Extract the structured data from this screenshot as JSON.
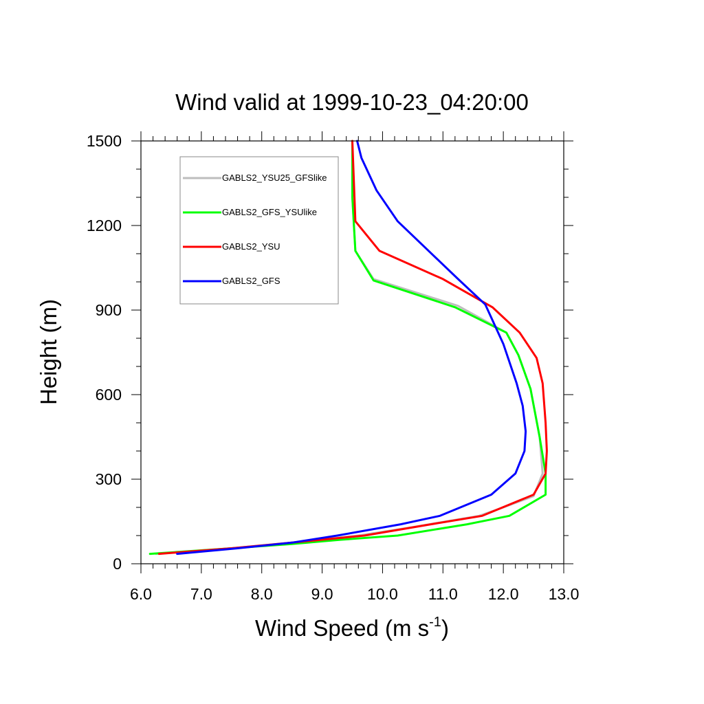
{
  "chart_data": {
    "type": "line",
    "title": "Wind valid at 1999-10-23_04:20:00",
    "xlabel_text": "Wind Speed (m s",
    "xlabel_superscript": "-1",
    "xlabel_close": ")",
    "ylabel": "Height (m)",
    "xlim": [
      6.0,
      13.0
    ],
    "ylim": [
      0,
      1500
    ],
    "x_ticks": [
      6.0,
      7.0,
      8.0,
      9.0,
      10.0,
      11.0,
      12.0,
      13.0
    ],
    "x_tick_labels": [
      "6.0",
      "7.0",
      "8.0",
      "9.0",
      "10.0",
      "11.0",
      "12.0",
      "13.0"
    ],
    "y_ticks": [
      0,
      300,
      600,
      900,
      1200,
      1500
    ],
    "y_tick_labels": [
      "0",
      "300",
      "600",
      "900",
      "1200",
      "1500"
    ],
    "grid": false,
    "legend_position": "top-left",
    "series": [
      {
        "name": "GABLS2_YSU25_GFSlike",
        "color": "#bdbdbd",
        "x": [
          6.25,
          7.5,
          8.5,
          9.6,
          10.5,
          11.6,
          12.0,
          12.5,
          12.65,
          12.6,
          12.45,
          12.25,
          12.05,
          11.25,
          9.85,
          9.55,
          9.5,
          9.5
        ],
        "y": [
          35,
          55,
          75,
          100,
          130,
          170,
          200,
          240,
          320,
          450,
          620,
          740,
          820,
          915,
          1010,
          1110,
          1300,
          1500
        ]
      },
      {
        "name": "GABLS2_GFS_YSUlike",
        "color": "#00ff00",
        "x": [
          6.15,
          7.5,
          8.5,
          9.3,
          10.25,
          11.4,
          12.1,
          12.7,
          12.7,
          12.6,
          12.45,
          12.25,
          12.05,
          11.2,
          9.85,
          9.55,
          9.5,
          9.5
        ],
        "y": [
          35,
          55,
          70,
          85,
          100,
          140,
          170,
          245,
          320,
          450,
          620,
          740,
          820,
          910,
          1005,
          1110,
          1300,
          1500
        ]
      },
      {
        "name": "GABLS2_YSU",
        "color": "#ff0000",
        "x": [
          6.3,
          7.5,
          8.5,
          9.7,
          10.8,
          11.65,
          12.5,
          12.7,
          12.72,
          12.7,
          12.65,
          12.55,
          12.27,
          11.82,
          11.0,
          9.95,
          9.55,
          9.5
        ],
        "y": [
          35,
          55,
          75,
          100,
          140,
          170,
          245,
          320,
          400,
          500,
          640,
          730,
          820,
          910,
          1010,
          1110,
          1215,
          1500
        ]
      },
      {
        "name": "GABLS2_GFS",
        "color": "#0000ff",
        "x": [
          6.6,
          7.6,
          8.5,
          9.25,
          10.3,
          10.95,
          11.8,
          12.2,
          12.35,
          12.37,
          12.32,
          12.22,
          12.0,
          11.7,
          11.25,
          10.25,
          9.9,
          9.65,
          9.58
        ],
        "y": [
          35,
          55,
          75,
          100,
          140,
          170,
          245,
          320,
          400,
          470,
          560,
          640,
          780,
          920,
          1010,
          1215,
          1325,
          1440,
          1500
        ]
      }
    ]
  }
}
